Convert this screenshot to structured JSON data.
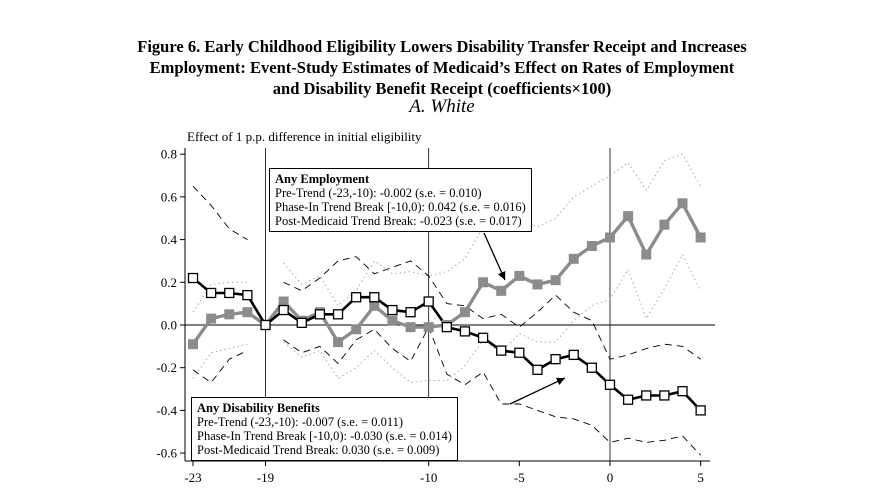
{
  "figure": {
    "title_lines": [
      "Figure 6. Early Childhood Eligibility Lowers Disability Transfer Receipt and Increases",
      "Employment: Event-Study Estimates of Medicaid’s Effect on Rates of Employment",
      "and Disability Benefit Receipt (coefficients×100)"
    ],
    "subtitle": "A. White"
  },
  "annotations": {
    "employment": {
      "heading": "Any Employment",
      "lines": [
        "Pre-Trend (-23,-10): -0.002 (s.e. = 0.010)",
        "Phase-In Trend Break [-10,0): 0.042 (s.e. = 0.016)",
        "Post-Medicaid Trend Break: -0.023 (s.e. = 0.017)"
      ]
    },
    "disability": {
      "heading": "Any Disability Benefits",
      "lines": [
        "Pre-Trend (-23,-10): -0.007 (s.e. = 0.011)",
        "Phase-In Trend Break [-10,0): -0.030 (s.e. = 0.014)",
        "Post-Medicaid Trend Break: 0.030 (s.e. = 0.009)"
      ]
    }
  },
  "chart_data": {
    "type": "line",
    "ylabel": "Effect of 1 p.p. difference in initial eligibility",
    "xlim": [
      -23,
      5
    ],
    "ylim": [
      -0.65,
      0.85
    ],
    "xticks": [
      -23,
      -19,
      -10,
      -5,
      0,
      5
    ],
    "yticks": [
      -0.6,
      -0.4,
      -0.2,
      0.0,
      0.2,
      0.4,
      0.6,
      0.8
    ],
    "ytick_labels": [
      "-0.6",
      "-0.4",
      "-0.2",
      "0.0",
      "0.2",
      "0.4",
      "0.6",
      "0.8"
    ],
    "vlines": [
      -19,
      -10,
      0
    ],
    "hline": 0,
    "x": [
      -23,
      -22,
      -21,
      -20,
      -19,
      -18,
      -17,
      -16,
      -15,
      -14,
      -13,
      -12,
      -11,
      -10,
      -9,
      -8,
      -7,
      -6,
      -5,
      -4,
      -3,
      -2,
      -1,
      0,
      1,
      2,
      3,
      4,
      5
    ],
    "series": [
      {
        "id": "employment",
        "color": "#8c8c8c",
        "marker": "filled-square",
        "values": [
          -0.09,
          0.03,
          0.05,
          0.06,
          0.0,
          0.11,
          0.02,
          0.06,
          -0.08,
          -0.02,
          0.09,
          0.02,
          -0.01,
          -0.01,
          0.0,
          0.06,
          0.2,
          0.16,
          0.23,
          0.19,
          0.21,
          0.31,
          0.37,
          0.41,
          0.51,
          0.33,
          0.47,
          0.57,
          0.41
        ],
        "ci_upper": [
          0.06,
          0.19,
          0.2,
          0.2,
          0.0,
          0.29,
          0.19,
          0.23,
          0.09,
          0.16,
          0.3,
          0.24,
          0.25,
          0.23,
          0.25,
          0.31,
          0.46,
          0.44,
          0.49,
          0.46,
          0.5,
          0.6,
          0.65,
          0.7,
          0.76,
          0.63,
          0.77,
          0.8,
          0.65
        ],
        "ci_lower": [
          -0.25,
          -0.13,
          -0.11,
          -0.09,
          0.0,
          -0.08,
          -0.15,
          -0.12,
          -0.25,
          -0.2,
          -0.12,
          -0.2,
          -0.27,
          -0.26,
          -0.26,
          -0.19,
          -0.07,
          -0.13,
          -0.04,
          -0.08,
          -0.08,
          0.02,
          0.09,
          0.12,
          0.26,
          0.03,
          0.17,
          0.33,
          0.16
        ]
      },
      {
        "id": "disability",
        "color": "#000000",
        "marker": "hollow-square",
        "values": [
          0.22,
          0.15,
          0.15,
          0.14,
          0.0,
          0.07,
          0.01,
          0.05,
          0.05,
          0.13,
          0.13,
          0.07,
          0.06,
          0.11,
          -0.01,
          -0.03,
          -0.06,
          -0.12,
          -0.13,
          -0.21,
          -0.16,
          -0.14,
          -0.2,
          -0.28,
          -0.35,
          -0.33,
          -0.33,
          -0.31,
          -0.4
        ],
        "ci_upper": [
          0.65,
          0.56,
          0.45,
          0.4,
          0.0,
          0.2,
          0.16,
          0.22,
          0.3,
          0.32,
          0.24,
          0.27,
          0.3,
          0.23,
          0.1,
          0.09,
          0.03,
          0.05,
          -0.01,
          0.06,
          0.14,
          0.06,
          0.02,
          -0.16,
          -0.14,
          -0.11,
          -0.09,
          -0.1,
          -0.16
        ],
        "ci_lower": [
          -0.21,
          -0.27,
          -0.16,
          -0.12,
          0.0,
          -0.07,
          -0.13,
          -0.1,
          -0.18,
          -0.07,
          -0.02,
          -0.11,
          -0.17,
          -0.01,
          -0.23,
          -0.28,
          -0.22,
          -0.37,
          -0.37,
          -0.4,
          -0.43,
          -0.44,
          -0.47,
          -0.55,
          -0.53,
          -0.55,
          -0.54,
          -0.52,
          -0.61
        ]
      }
    ]
  }
}
